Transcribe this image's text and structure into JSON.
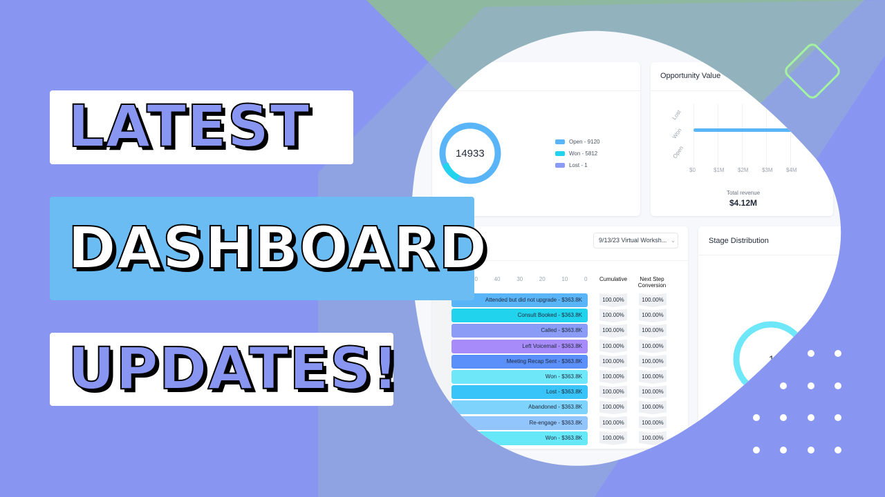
{
  "headline": {
    "line1": "LATEST",
    "line2": "DASHBOARD",
    "line3": "UPDATES!"
  },
  "colors": {
    "background": "#8896f2",
    "accent_blue": "#6bbcf2",
    "green": "#8fb8a0",
    "headline_text": "#8896f2"
  },
  "dashboard": {
    "opportunities": {
      "total": "14933",
      "legend": [
        {
          "label": "Open - 9120",
          "color": "#5ab4f8"
        },
        {
          "label": "Won - 5812",
          "color": "#22d3ee"
        },
        {
          "label": "Lost - 1",
          "color": "#8a9cf5"
        }
      ]
    },
    "opportunity_value": {
      "title": "Opportunity Value",
      "y_labels": [
        "Lost",
        "Won",
        "Open"
      ],
      "x_ticks": [
        "$0",
        "$1M",
        "$2M",
        "$3M",
        "$4M"
      ],
      "total_label": "Total revenue",
      "total_value": "$4.12M"
    },
    "funnel": {
      "dropdown": "9/13/23 Virtual Worksh...",
      "axis_ticks": [
        "50",
        "40",
        "30",
        "20",
        "10",
        "0"
      ],
      "col_cumulative": "Cumulative",
      "col_next": "Next Step Conversion",
      "rows": [
        {
          "label": "Attended but did not upgrade - $363.8K",
          "color": "#5ab4f8",
          "cumulative": "100.00%",
          "next": "100.00%"
        },
        {
          "label": "Consult Booked - $363.8K",
          "color": "#22d3ee",
          "cumulative": "100.00%",
          "next": "100.00%"
        },
        {
          "label": "Called - $363.8K",
          "color": "#8a9cf5",
          "cumulative": "100.00%",
          "next": "100.00%"
        },
        {
          "label": "Left Voicemail - $363.8K",
          "color": "#a78bfa",
          "cumulative": "100.00%",
          "next": "100.00%"
        },
        {
          "label": "Meeting Recap Sent - $363.8K",
          "color": "#5b8ff9",
          "cumulative": "100.00%",
          "next": "100.00%"
        },
        {
          "label": "Won - $363.8K",
          "color": "#6ee7f9",
          "cumulative": "100.00%",
          "next": "100.00%"
        },
        {
          "label": "Lost - $363.8K",
          "color": "#38c4f8",
          "cumulative": "100.00%",
          "next": "100.00%"
        },
        {
          "label": "Abandoned - $363.8K",
          "color": "#7dd3fc",
          "cumulative": "100.00%",
          "next": "100.00%"
        },
        {
          "label": "Re-engage - $363.8K",
          "color": "#93c5fd",
          "cumulative": "100.00%",
          "next": "100.00%"
        },
        {
          "label": "Won - $363.8K",
          "color": "#67e8f9",
          "cumulative": "100.00%",
          "next": "100.00%"
        }
      ]
    },
    "stage_distribution": {
      "title": "Stage Distribution",
      "center": "1"
    }
  }
}
